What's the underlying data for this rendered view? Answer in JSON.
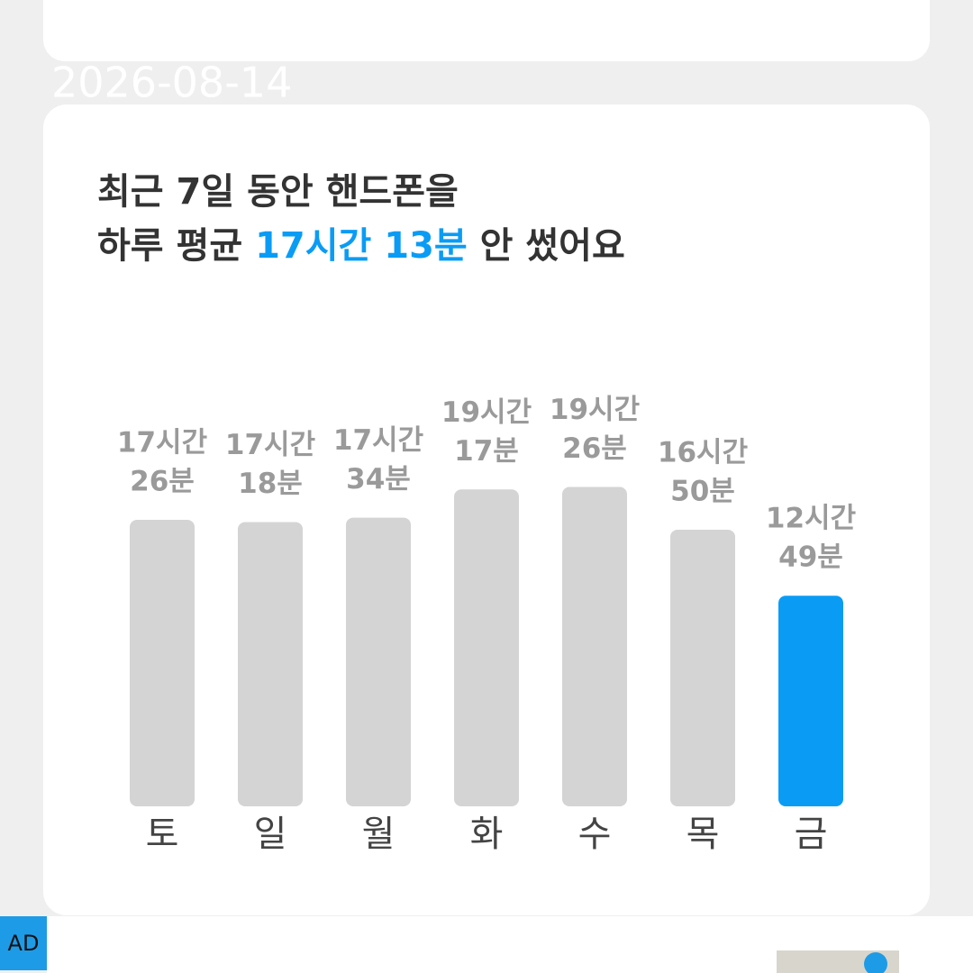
{
  "date": "2026-08-14",
  "title_line1": "최근 7일 동안 핸드폰을",
  "title_line2": {
    "before": "하루 평균 ",
    "highlight": "17시간 13분",
    "after": " 안 썼어요"
  },
  "chart_data": {
    "type": "bar",
    "categories": [
      "토",
      "일",
      "월",
      "화",
      "수",
      "목",
      "금"
    ],
    "values": [
      1046,
      1038,
      1054,
      1157,
      1166,
      1010,
      769
    ],
    "value_labels": [
      [
        "17시간",
        "26분"
      ],
      [
        "17시간",
        "18분"
      ],
      [
        "17시간",
        "34분"
      ],
      [
        "19시간",
        "17분"
      ],
      [
        "19시간",
        "26분"
      ],
      [
        "16시간",
        "50분"
      ],
      [
        "12시간",
        "49분"
      ]
    ],
    "colors": [
      "#d4d4d4",
      "#d4d4d4",
      "#d4d4d4",
      "#d4d4d4",
      "#d4d4d4",
      "#d4d4d4",
      "#0a9cf5"
    ]
  },
  "ad_badge": "AD"
}
